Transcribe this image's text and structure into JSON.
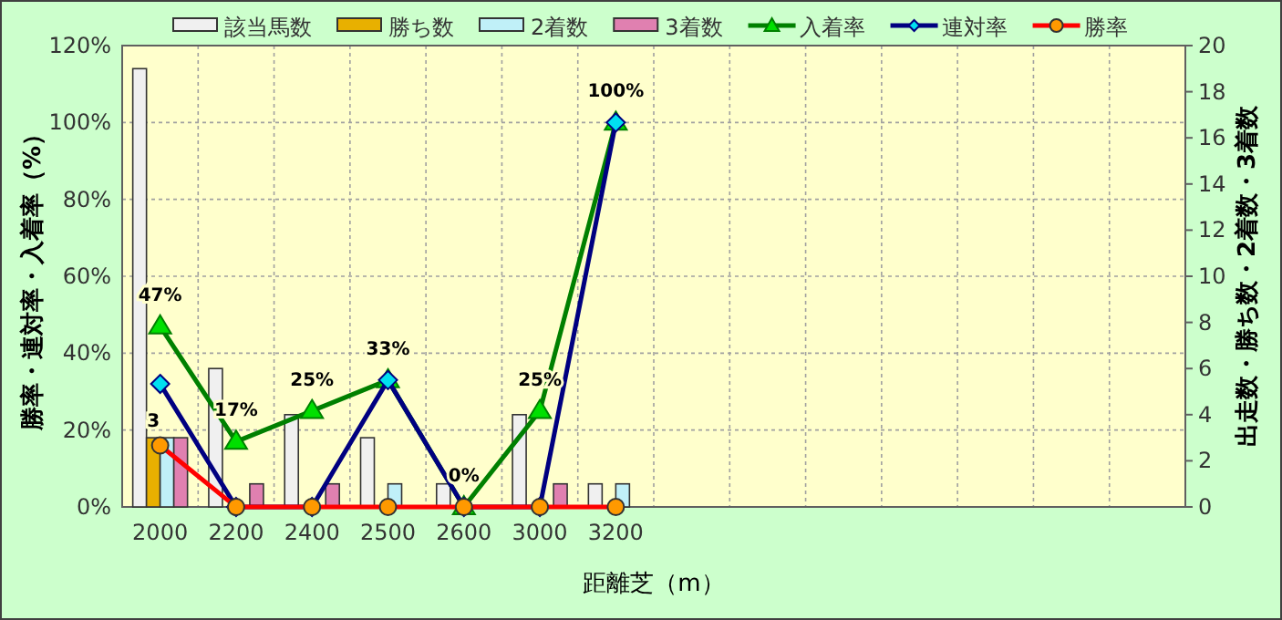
{
  "chart_data": {
    "type": "bar",
    "xlabel": "距離芝（m）",
    "ylabel": "勝率・連対率・入着率（%）",
    "y2label": "出走数・勝ち数・2着数・3着数",
    "categories": [
      "2000",
      "2200",
      "2400",
      "2500",
      "2600",
      "3000",
      "3200",
      null,
      null,
      null,
      null,
      null,
      null,
      null
    ],
    "series": [
      {
        "name": "該当馬数",
        "axis": "y2",
        "color": "#f0f0f0",
        "values": [
          19,
          6,
          4,
          3,
          1,
          4,
          1,
          null,
          null,
          null,
          null,
          null,
          null,
          null
        ]
      },
      {
        "name": "勝ち数",
        "axis": "y2",
        "color": "#e8b000",
        "values": [
          3,
          0,
          0,
          0,
          0,
          0,
          0,
          null,
          null,
          null,
          null,
          null,
          null,
          null
        ],
        "value_labels": [
          "3",
          null,
          null,
          null,
          null,
          null,
          null,
          null,
          null,
          null,
          null,
          null,
          null,
          null
        ]
      },
      {
        "name": "2着数",
        "axis": "y2",
        "color": "#c0f0f8",
        "values": [
          3,
          0,
          0,
          1,
          0,
          0,
          1,
          null,
          null,
          null,
          null,
          null,
          null,
          null
        ]
      },
      {
        "name": "3着数",
        "axis": "y2",
        "color": "#e080b0",
        "values": [
          3,
          1,
          1,
          0,
          0,
          1,
          0,
          null,
          null,
          null,
          null,
          null,
          null,
          null
        ]
      },
      {
        "name": "入着率",
        "type": "line",
        "color": "#008000",
        "marker": "triangle",
        "values": [
          47,
          17,
          25,
          33,
          0,
          25,
          100,
          null,
          null,
          null,
          null,
          null,
          null,
          null
        ],
        "value_labels": [
          "47%",
          "17%",
          "25%",
          "33%",
          "0%",
          "25%",
          "100%",
          null,
          null,
          null,
          null,
          null,
          null,
          null
        ]
      },
      {
        "name": "連対率",
        "type": "line",
        "color": "#000080",
        "marker": "diamond",
        "values": [
          32,
          0,
          0,
          33,
          0,
          0,
          100,
          null,
          null,
          null,
          null,
          null,
          null,
          null
        ]
      },
      {
        "name": "勝率",
        "type": "line",
        "color": "#ff0000",
        "marker": "circle",
        "values": [
          16,
          0,
          0,
          0,
          0,
          0,
          0,
          null,
          null,
          null,
          null,
          null,
          null,
          null
        ]
      }
    ],
    "ylim": [
      0,
      120
    ],
    "yticks": [
      {
        "value": 0,
        "label": "0%"
      },
      {
        "value": 20,
        "label": "20%"
      },
      {
        "value": 40,
        "label": "40%"
      },
      {
        "value": 60,
        "label": "60%"
      },
      {
        "value": 80,
        "label": "80%"
      },
      {
        "value": 100,
        "label": "100%"
      },
      {
        "value": 120,
        "label": "120%"
      }
    ],
    "y2lim": [
      0,
      20
    ],
    "y2ticks": [
      0,
      2,
      4,
      6,
      8,
      10,
      12,
      14,
      16,
      18,
      20
    ],
    "grid": true,
    "legend": "top"
  }
}
